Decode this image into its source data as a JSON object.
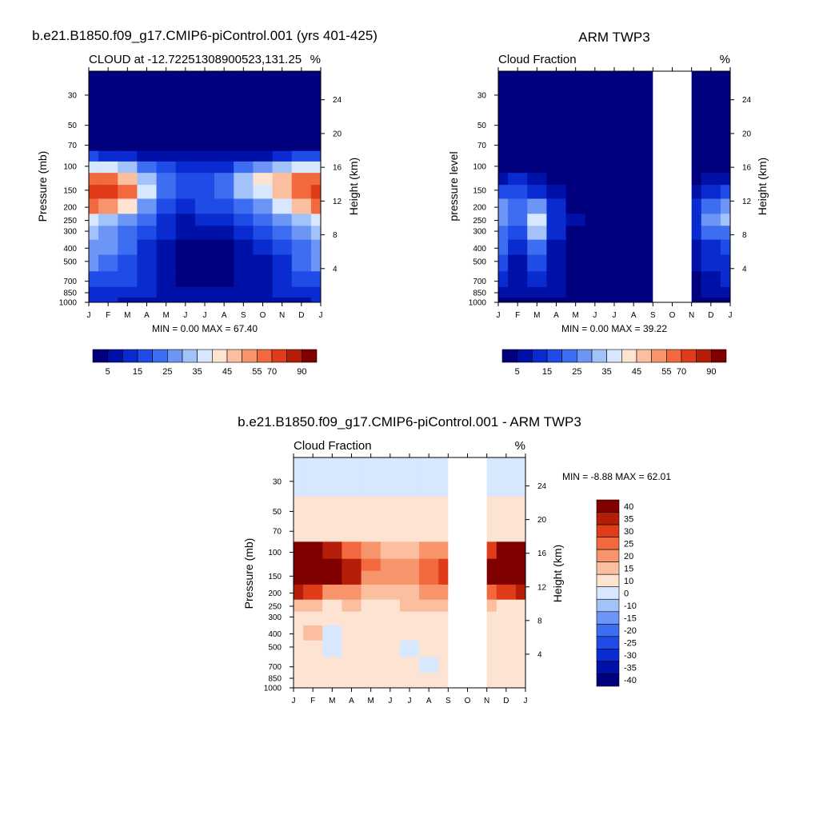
{
  "panels": [
    {
      "id": "model",
      "title": "b.e21.B1850.f09_g17.CMIP6-piControl.001 (yrs 401-425)",
      "left_label": "CLOUD at -12.72251308900523,131.25",
      "right_label": "%",
      "ylabel_left": "Pressure (mb)",
      "ylabel_right": "Height (km)",
      "minmax": "MIN =   0.00 MAX =  67.40",
      "colorbar_ticks": [
        "5",
        "15",
        "25",
        "35",
        "45",
        "55",
        "70",
        "90"
      ]
    },
    {
      "id": "obs",
      "title": "ARM TWP3",
      "left_label": "Cloud Fraction",
      "right_label": "%",
      "ylabel_left": "pressure level",
      "ylabel_right": "Height (km)",
      "minmax": "MIN =   0.00 MAX =  39.22",
      "colorbar_ticks": [
        "5",
        "15",
        "25",
        "35",
        "45",
        "55",
        "70",
        "90"
      ]
    },
    {
      "id": "diff",
      "title": "b.e21.B1850.f09_g17.CMIP6-piControl.001 - ARM TWP3",
      "left_label": "Cloud Fraction",
      "right_label": "%",
      "ylabel_left": "Pressure (mb)",
      "ylabel_right": "Height (km)",
      "minmax": "MIN =  -8.88 MAX =  62.01",
      "colorbar_ticks": [
        "40",
        "35",
        "30",
        "25",
        "20",
        "15",
        "10",
        "0",
        "-10",
        "-15",
        "-20",
        "-25",
        "-30",
        "-35",
        "-40"
      ]
    }
  ],
  "chart_data": [
    {
      "type": "heatmap",
      "title": "b.e21.B1850.f09_g17.CMIP6-piControl.001 (yrs 401-425)",
      "subtitle": "CLOUD at -12.72251308900523,131.25",
      "units": "%",
      "x_ticks": [
        "J",
        "F",
        "M",
        "A",
        "M",
        "J",
        "J",
        "A",
        "S",
        "O",
        "N",
        "D",
        "J"
      ],
      "y_ticks_pressure": [
        30,
        50,
        70,
        100,
        150,
        200,
        250,
        300,
        400,
        500,
        700,
        850,
        1000
      ],
      "y_ticks_height_km": [
        24,
        20,
        16,
        12,
        8,
        4
      ],
      "ylabel": "Pressure (mb)",
      "ylabel_right": "Height (km)",
      "min": 0.0,
      "max": 67.4,
      "levels": [
        5,
        10,
        15,
        20,
        25,
        30,
        35,
        40,
        45,
        50,
        55,
        60,
        70,
        80,
        90
      ],
      "palette": [
        "#00007f",
        "#0011a8",
        "#0a2bd0",
        "#1f4be6",
        "#3d6df0",
        "#6c95f6",
        "#a4c2fa",
        "#d7e7fd",
        "#fde4d2",
        "#fbbfa0",
        "#f7946c",
        "#f2683f",
        "#e03c1a",
        "#b41e08",
        "#800000"
      ],
      "months": [
        "Jan",
        "Feb",
        "Mar",
        "Apr",
        "May",
        "Jun",
        "Jul",
        "Aug",
        "Sep",
        "Oct",
        "Nov",
        "Dec",
        "Jan"
      ],
      "values_by_pressure": [
        {
          "p": 30,
          "values": [
            0,
            0,
            0,
            0,
            0,
            0,
            0,
            0,
            0,
            0,
            0,
            0,
            0
          ]
        },
        {
          "p": 50,
          "values": [
            0,
            0,
            0,
            0,
            0,
            0,
            0,
            0,
            0,
            0,
            0,
            0,
            0
          ]
        },
        {
          "p": 70,
          "values": [
            3,
            2,
            1,
            1,
            0,
            0,
            0,
            0,
            0,
            1,
            1,
            2,
            3
          ]
        },
        {
          "p": 85,
          "values": [
            15,
            14,
            12,
            8,
            6,
            5,
            5,
            5,
            7,
            9,
            12,
            15,
            15
          ]
        },
        {
          "p": 100,
          "values": [
            35,
            36,
            32,
            22,
            15,
            12,
            12,
            14,
            20,
            28,
            32,
            36,
            35
          ]
        },
        {
          "p": 125,
          "values": [
            55,
            58,
            48,
            33,
            20,
            15,
            15,
            20,
            30,
            40,
            48,
            55,
            55
          ]
        },
        {
          "p": 150,
          "values": [
            65,
            67,
            55,
            35,
            22,
            16,
            17,
            22,
            30,
            38,
            47,
            58,
            65
          ]
        },
        {
          "p": 200,
          "values": [
            55,
            50,
            42,
            28,
            18,
            14,
            15,
            18,
            22,
            28,
            35,
            48,
            55
          ]
        },
        {
          "p": 250,
          "values": [
            38,
            33,
            28,
            22,
            14,
            9,
            10,
            12,
            16,
            20,
            26,
            33,
            38
          ]
        },
        {
          "p": 300,
          "values": [
            30,
            26,
            22,
            18,
            10,
            5,
            5,
            7,
            12,
            16,
            20,
            26,
            30
          ]
        },
        {
          "p": 400,
          "values": [
            28,
            25,
            20,
            14,
            6,
            3,
            3,
            4,
            7,
            10,
            15,
            24,
            28
          ]
        },
        {
          "p": 500,
          "values": [
            26,
            22,
            18,
            12,
            5,
            2,
            2,
            3,
            6,
            8,
            14,
            22,
            26
          ]
        },
        {
          "p": 700,
          "values": [
            18,
            16,
            15,
            10,
            6,
            4,
            3,
            4,
            6,
            8,
            10,
            16,
            18
          ]
        },
        {
          "p": 850,
          "values": [
            14,
            13,
            12,
            10,
            8,
            6,
            5,
            5,
            6,
            8,
            10,
            13,
            14
          ]
        },
        {
          "p": 1000,
          "values": [
            10,
            10,
            9,
            8,
            6,
            5,
            5,
            5,
            5,
            6,
            7,
            9,
            10
          ]
        }
      ]
    },
    {
      "type": "heatmap",
      "title": "ARM TWP3",
      "subtitle": "Cloud Fraction",
      "units": "%",
      "x_ticks": [
        "J",
        "F",
        "M",
        "A",
        "M",
        "J",
        "J",
        "A",
        "S",
        "O",
        "N",
        "D",
        "J"
      ],
      "y_ticks_pressure": [
        30,
        50,
        70,
        100,
        150,
        200,
        250,
        300,
        400,
        500,
        700,
        850,
        1000
      ],
      "y_ticks_height_km": [
        24,
        20,
        16,
        12,
        8,
        4
      ],
      "ylabel": "pressure level",
      "ylabel_right": "Height (km)",
      "min": 0.0,
      "max": 39.22,
      "missing_months": [
        "Oct"
      ],
      "levels": [
        5,
        10,
        15,
        20,
        25,
        30,
        35,
        40,
        45,
        50,
        55,
        60,
        70,
        80,
        90
      ],
      "palette": [
        "#00007f",
        "#0011a8",
        "#0a2bd0",
        "#1f4be6",
        "#3d6df0",
        "#6c95f6",
        "#a4c2fa",
        "#d7e7fd",
        "#fde4d2",
        "#fbbfa0",
        "#f7946c",
        "#f2683f",
        "#e03c1a",
        "#b41e08",
        "#800000"
      ],
      "months": [
        "Jan",
        "Feb",
        "Mar",
        "Apr",
        "May",
        "Jun",
        "Jul",
        "Aug",
        "Sep",
        "Oct",
        "Nov",
        "Dec",
        "Jan"
      ],
      "values_by_pressure": [
        {
          "p": 30,
          "values": [
            0,
            0,
            0,
            0,
            0,
            0,
            0,
            0,
            0,
            null,
            0,
            0,
            0
          ]
        },
        {
          "p": 50,
          "values": [
            0,
            0,
            0,
            0,
            0,
            0,
            0,
            0,
            0,
            null,
            0,
            0,
            0
          ]
        },
        {
          "p": 70,
          "values": [
            0,
            0,
            0,
            0,
            0,
            0,
            0,
            0,
            0,
            null,
            0,
            0,
            0
          ]
        },
        {
          "p": 100,
          "values": [
            2,
            2,
            1,
            0,
            0,
            0,
            0,
            0,
            0,
            null,
            1,
            1,
            2
          ]
        },
        {
          "p": 125,
          "values": [
            8,
            10,
            6,
            2,
            1,
            0,
            0,
            0,
            0,
            null,
            3,
            6,
            8
          ]
        },
        {
          "p": 150,
          "values": [
            15,
            18,
            14,
            5,
            2,
            0,
            0,
            0,
            0,
            null,
            8,
            14,
            16
          ]
        },
        {
          "p": 200,
          "values": [
            25,
            22,
            28,
            10,
            4,
            1,
            0,
            0,
            0,
            null,
            12,
            22,
            26
          ]
        },
        {
          "p": 250,
          "values": [
            28,
            20,
            36,
            12,
            5,
            1,
            0,
            0,
            0,
            null,
            12,
            26,
            32
          ]
        },
        {
          "p": 300,
          "values": [
            24,
            16,
            30,
            10,
            4,
            1,
            0,
            0,
            0,
            null,
            10,
            20,
            24
          ]
        },
        {
          "p": 400,
          "values": [
            20,
            10,
            22,
            8,
            3,
            0,
            0,
            0,
            0,
            null,
            6,
            14,
            18
          ]
        },
        {
          "p": 500,
          "values": [
            16,
            8,
            18,
            7,
            2,
            0,
            0,
            0,
            0,
            null,
            5,
            12,
            14
          ]
        },
        {
          "p": 700,
          "values": [
            12,
            6,
            12,
            6,
            3,
            1,
            0,
            0,
            0,
            null,
            4,
            8,
            10
          ]
        },
        {
          "p": 850,
          "values": [
            8,
            5,
            8,
            5,
            3,
            1,
            1,
            1,
            1,
            null,
            3,
            6,
            8
          ]
        },
        {
          "p": 1000,
          "values": [
            4,
            3,
            3,
            3,
            2,
            1,
            1,
            1,
            1,
            null,
            2,
            3,
            4
          ]
        }
      ]
    },
    {
      "type": "heatmap",
      "title": "b.e21.B1850.f09_g17.CMIP6-piControl.001 - ARM TWP3",
      "subtitle": "Cloud Fraction",
      "units": "%",
      "x_ticks": [
        "J",
        "F",
        "M",
        "A",
        "M",
        "J",
        "J",
        "A",
        "S",
        "O",
        "N",
        "D",
        "J"
      ],
      "y_ticks_pressure": [
        30,
        50,
        70,
        100,
        150,
        200,
        250,
        300,
        400,
        500,
        700,
        850,
        1000
      ],
      "y_ticks_height_km": [
        24,
        20,
        16,
        12,
        8,
        4
      ],
      "ylabel": "Pressure (mb)",
      "ylabel_right": "Height (km)",
      "min": -8.88,
      "max": 62.01,
      "missing_months": [
        "Oct"
      ],
      "levels": [
        -40,
        -35,
        -30,
        -25,
        -20,
        -15,
        -10,
        0,
        10,
        15,
        20,
        25,
        30,
        35,
        40
      ],
      "palette": [
        "#00007f",
        "#0011a8",
        "#0a2bd0",
        "#1f4be6",
        "#3d6df0",
        "#6c95f6",
        "#a4c2fa",
        "#d7e7fd",
        "#fde4d2",
        "#fbbfa0",
        "#f7946c",
        "#f2683f",
        "#e03c1a",
        "#b41e08",
        "#800000"
      ],
      "months": [
        "Jan",
        "Feb",
        "Mar",
        "Apr",
        "May",
        "Jun",
        "Jul",
        "Aug",
        "Sep",
        "Oct",
        "Nov",
        "Dec",
        "Jan"
      ],
      "values_by_pressure": [
        {
          "p": 30,
          "values": [
            -1,
            -1,
            -1,
            -1,
            -1,
            -1,
            -1,
            -1,
            -1,
            null,
            -1,
            -1,
            -1
          ]
        },
        {
          "p": 50,
          "values": [
            1,
            1,
            1,
            1,
            1,
            1,
            1,
            1,
            1,
            null,
            1,
            1,
            1
          ]
        },
        {
          "p": 70,
          "values": [
            4,
            3,
            2,
            2,
            1,
            1,
            1,
            1,
            1,
            null,
            2,
            3,
            4
          ]
        },
        {
          "p": 100,
          "values": [
            38,
            40,
            30,
            22,
            16,
            14,
            14,
            16,
            18,
            null,
            26,
            36,
            38
          ]
        },
        {
          "p": 125,
          "values": [
            48,
            50,
            44,
            32,
            22,
            16,
            16,
            20,
            28,
            null,
            38,
            46,
            48
          ]
        },
        {
          "p": 150,
          "values": [
            50,
            52,
            42,
            30,
            18,
            15,
            16,
            20,
            26,
            null,
            36,
            46,
            50
          ]
        },
        {
          "p": 200,
          "values": [
            30,
            28,
            16,
            18,
            14,
            12,
            14,
            16,
            18,
            null,
            20,
            26,
            30
          ]
        },
        {
          "p": 250,
          "values": [
            12,
            10,
            4,
            10,
            8,
            8,
            10,
            10,
            10,
            null,
            12,
            8,
            8
          ]
        },
        {
          "p": 300,
          "values": [
            8,
            8,
            2,
            8,
            6,
            4,
            5,
            6,
            6,
            null,
            8,
            4,
            4
          ]
        },
        {
          "p": 400,
          "values": [
            6,
            10,
            -1,
            6,
            3,
            2,
            3,
            3,
            4,
            null,
            8,
            6,
            8
          ]
        },
        {
          "p": 500,
          "values": [
            4,
            8,
            -2,
            4,
            1,
            1,
            -1,
            1,
            2,
            null,
            6,
            6,
            8
          ]
        },
        {
          "p": 700,
          "values": [
            2,
            6,
            2,
            2,
            2,
            2,
            1,
            -1,
            2,
            null,
            4,
            4,
            6
          ]
        },
        {
          "p": 850,
          "values": [
            2,
            4,
            2,
            2,
            3,
            3,
            2,
            2,
            2,
            null,
            4,
            4,
            4
          ]
        },
        {
          "p": 1000,
          "values": [
            2,
            2,
            2,
            2,
            2,
            2,
            2,
            2,
            2,
            null,
            2,
            2,
            2
          ]
        }
      ]
    }
  ]
}
